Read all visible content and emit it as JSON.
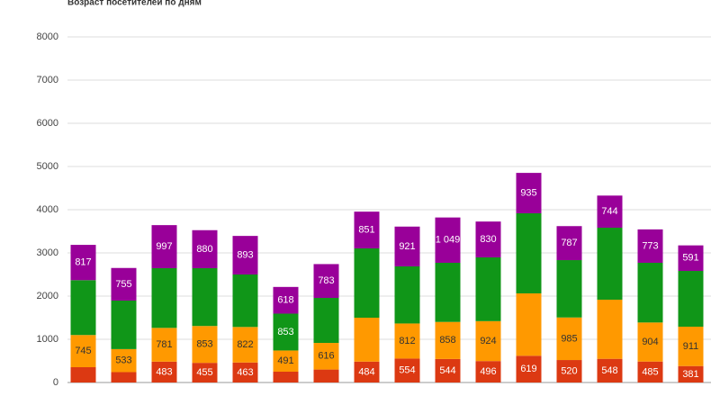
{
  "chart_data": {
    "type": "stacked_bar",
    "title": "Возраст посетителей по дням",
    "categories": [
      null,
      null,
      null,
      null,
      null,
      null,
      null,
      null,
      null,
      null,
      null,
      null,
      null,
      null,
      null,
      null
    ],
    "series": [
      {
        "color": "#dc3912",
        "values": [
          354,
          240,
          483,
          455,
          463,
          250,
          300,
          484,
          554,
          544,
          496,
          619,
          520,
          548,
          485,
          381
        ],
        "value_labels": [
          null,
          null,
          "483",
          "455",
          "463",
          null,
          null,
          "484",
          "554",
          "544",
          "496",
          "619",
          "520",
          "548",
          "485",
          "381"
        ]
      },
      {
        "color": "#ff9900",
        "values": [
          745,
          533,
          781,
          853,
          822,
          491,
          616,
          1016,
          812,
          858,
          924,
          1444,
          985,
          1369,
          904,
          911
        ],
        "value_labels": [
          "745",
          "533",
          "781",
          "853",
          "822",
          "491",
          "616",
          null,
          "812",
          "858",
          "924",
          null,
          "985",
          null,
          "904",
          "911"
        ]
      },
      {
        "color": "#109618",
        "values": [
          1270,
          1123,
          1382,
          1338,
          1215,
          853,
          1042,
          1604,
          1322,
          1369,
          1476,
          1854,
          1328,
          1666,
          1382,
          1291
        ],
        "value_labels": [
          null,
          null,
          null,
          null,
          null,
          "853",
          null,
          null,
          null,
          null,
          null,
          null,
          null,
          null,
          null,
          null
        ]
      },
      {
        "color": "#990099",
        "values": [
          817,
          755,
          997,
          880,
          893,
          618,
          783,
          851,
          921,
          1049,
          830,
          935,
          787,
          744,
          773,
          591
        ],
        "value_labels": [
          "817",
          "755",
          "997",
          "880",
          "893",
          "618",
          "783",
          "851",
          "921",
          "1 049",
          "830",
          "935",
          "787",
          "744",
          "773",
          "591"
        ]
      }
    ],
    "ylim": [
      0,
      8000
    ],
    "yticks": [
      0,
      1000,
      2000,
      3000,
      4000,
      5000,
      6000,
      7000,
      8000
    ],
    "grid": true
  }
}
